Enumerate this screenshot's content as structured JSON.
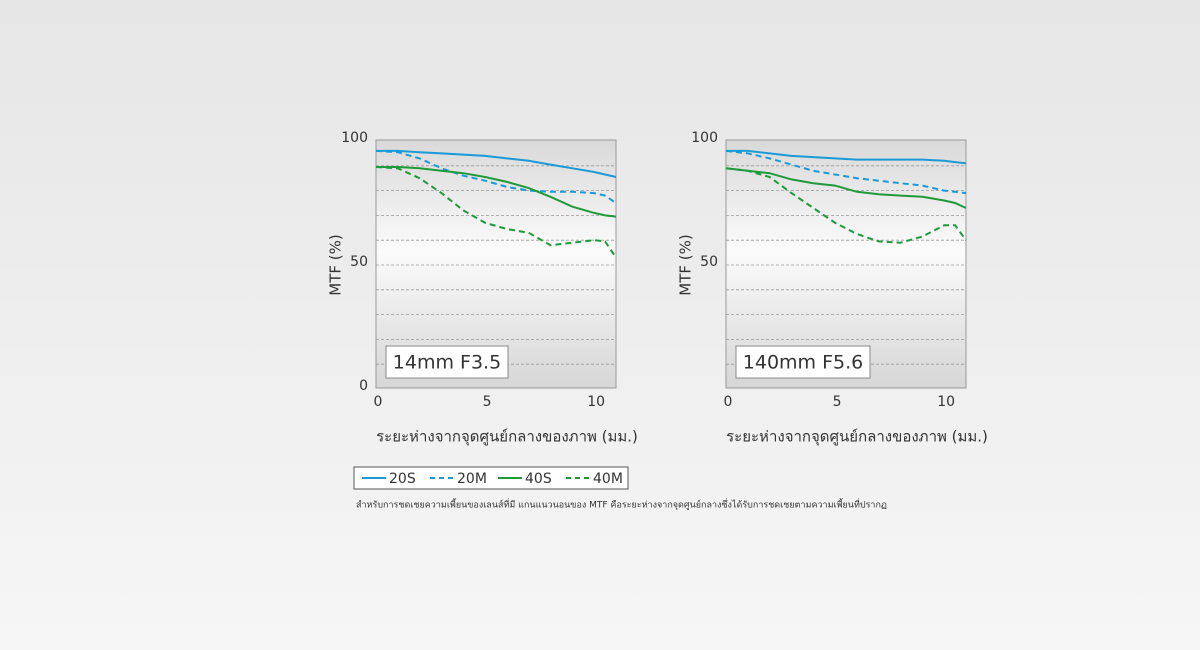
{
  "chart_data": [
    {
      "type": "line",
      "label": "14mm F3.5",
      "ylabel": "MTF (%)",
      "xlabel": "ระยะห่างจากจุดศูนย์กลางของภาพ (มม.)",
      "x": [
        0,
        1,
        2,
        3,
        4,
        5,
        6,
        7,
        8,
        9,
        10,
        10.5,
        11
      ],
      "xlim": [
        0,
        11
      ],
      "xticks": [
        0,
        5,
        10
      ],
      "ylim": [
        0,
        100
      ],
      "yticks": [
        0,
        50,
        100
      ],
      "ygrid": [
        10,
        20,
        30,
        40,
        50,
        60,
        70,
        80,
        90
      ],
      "series": [
        {
          "name": "20S",
          "color": "#1a9ad6",
          "style": "solid",
          "values": [
            96,
            96,
            95.5,
            95,
            94.5,
            94,
            93,
            92,
            90.5,
            89,
            87.5,
            86.5,
            85.5
          ]
        },
        {
          "name": "20M",
          "color": "#1a9ad6",
          "style": "dashed",
          "values": [
            96,
            95.5,
            93,
            89,
            86,
            84,
            81.5,
            80,
            79.5,
            79.5,
            79,
            78,
            75
          ]
        },
        {
          "name": "40S",
          "color": "#1f9a3a",
          "style": "solid",
          "values": [
            89.5,
            89.5,
            89,
            88,
            87,
            85.5,
            83.5,
            81,
            77.5,
            73.5,
            71,
            70,
            69.5
          ]
        },
        {
          "name": "40M",
          "color": "#1f9a3a",
          "style": "dashed",
          "values": [
            89.5,
            89,
            85,
            79,
            72,
            67,
            64.5,
            63,
            58,
            59,
            60,
            59.5,
            53
          ]
        }
      ]
    },
    {
      "type": "line",
      "label": "140mm F5.6",
      "ylabel": "MTF (%)",
      "xlabel": "ระยะห่างจากจุดศูนย์กลางของภาพ (มม.)",
      "x": [
        0,
        1,
        2,
        3,
        4,
        5,
        6,
        7,
        8,
        9,
        10,
        10.5,
        11
      ],
      "xlim": [
        0,
        11
      ],
      "xticks": [
        0,
        5,
        10
      ],
      "ylim": [
        0,
        100
      ],
      "yticks": [
        50,
        100
      ],
      "ygrid": [
        10,
        20,
        30,
        40,
        50,
        60,
        70,
        80,
        90
      ],
      "series": [
        {
          "name": "20S",
          "color": "#1a9ad6",
          "style": "solid",
          "values": [
            96,
            96,
            95,
            94,
            93.5,
            93,
            92.5,
            92.5,
            92.5,
            92.5,
            92,
            91.5,
            91
          ]
        },
        {
          "name": "20M",
          "color": "#1a9ad6",
          "style": "dashed",
          "values": [
            96,
            95,
            93,
            90.5,
            88,
            86.5,
            85,
            84,
            83,
            82,
            80,
            79.5,
            79
          ]
        },
        {
          "name": "40S",
          "color": "#1f9a3a",
          "style": "solid",
          "values": [
            89,
            88,
            87,
            84.5,
            83,
            82,
            79.5,
            78.5,
            78,
            77.5,
            76,
            75,
            73
          ]
        },
        {
          "name": "40M",
          "color": "#1f9a3a",
          "style": "dashed",
          "values": [
            89,
            88,
            85.5,
            79,
            73,
            67,
            62.5,
            59.5,
            59,
            61.5,
            66,
            66,
            60
          ]
        }
      ]
    }
  ],
  "footnote": "สำหรับการชดเชยความเพี้ยนของเลนส์ที่มี แกนแนวนอนของ MTF คือระยะห่างจากจุดศูนย์กลางซึ่งได้รับการชดเชยตามความเพี้ยนที่ปรากฏ"
}
